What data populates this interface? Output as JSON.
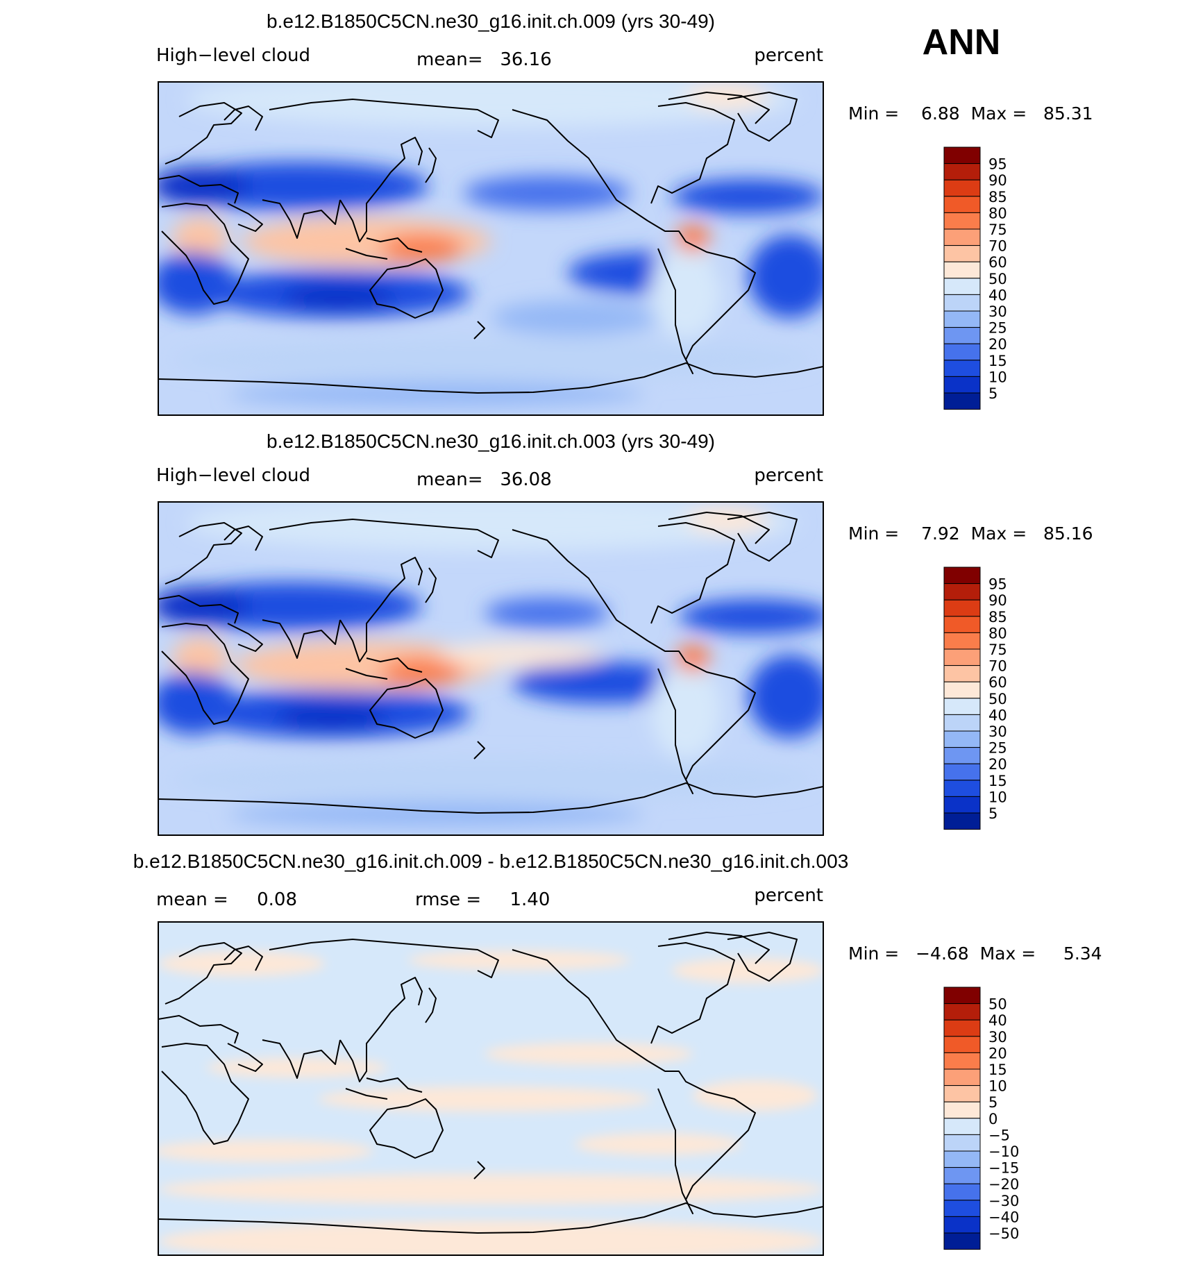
{
  "season": "ANN",
  "panels": [
    {
      "title": "b.e12.B1850C5CN.ne30_g16.init.ch.009 (yrs 30-49)",
      "left_label": "High−level cloud",
      "center_label": "mean=   36.16",
      "right_label": "percent",
      "range_text": "Min =    6.88  Max =   85.31",
      "levels": [
        "95",
        "90",
        "85",
        "80",
        "75",
        "70",
        "60",
        "50",
        "40",
        "30",
        "25",
        "20",
        "15",
        "10",
        "5"
      ]
    },
    {
      "title": "b.e12.B1850C5CN.ne30_g16.init.ch.003 (yrs 30-49)",
      "left_label": "High−level cloud",
      "center_label": "mean=   36.08",
      "right_label": "percent",
      "range_text": "Min =    7.92  Max =   85.16",
      "levels": [
        "95",
        "90",
        "85",
        "80",
        "75",
        "70",
        "60",
        "50",
        "40",
        "30",
        "25",
        "20",
        "15",
        "10",
        "5"
      ]
    },
    {
      "title": "b.e12.B1850C5CN.ne30_g16.init.ch.009 - b.e12.B1850C5CN.ne30_g16.init.ch.003",
      "left_label": "mean =     0.08",
      "center_label": "rmse =     1.40",
      "right_label": "percent",
      "range_text": "Min =   −4.68  Max =     5.34",
      "levels": [
        "50",
        "40",
        "30",
        "20",
        "15",
        "10",
        "5",
        "0",
        "−5",
        "−10",
        "−15",
        "−20",
        "−30",
        "−40",
        "−50"
      ]
    }
  ],
  "colors": {
    "scale": [
      "#800000",
      "#b41e0a",
      "#dc3c14",
      "#f05a28",
      "#fa7d4b",
      "#fca078",
      "#fdc4a4",
      "#fde8d8",
      "#d6e8fa",
      "#bcd4f8",
      "#94b8f6",
      "#6e96f2",
      "#4672ec",
      "#1e4ee0",
      "#0a32c8",
      "#001e96"
    ],
    "ocean_base": "#c3d7fa",
    "land_line": "#000000"
  }
}
